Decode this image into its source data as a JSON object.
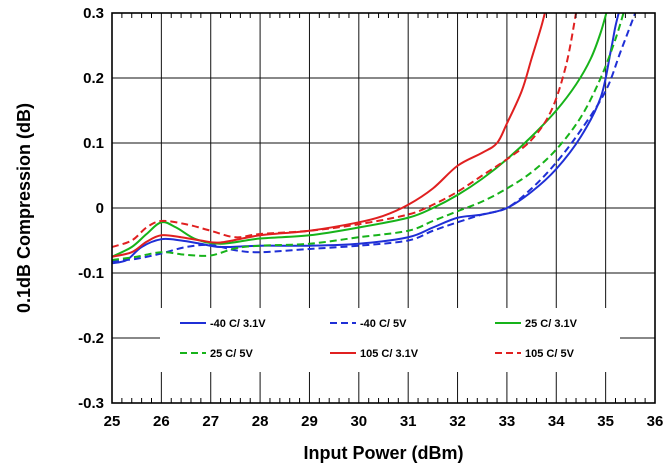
{
  "chart_data": {
    "type": "line",
    "xlabel": "Input Power (dBm)",
    "ylabel": "0.1dB Compression (dB)",
    "xlim": [
      25,
      36
    ],
    "ylim": [
      -0.3,
      0.3
    ],
    "xticks": [
      "25",
      "26",
      "27",
      "28",
      "29",
      "30",
      "31",
      "32",
      "33",
      "34",
      "35",
      "36"
    ],
    "yticks": [
      "-0.3",
      "-0.2",
      "-0.1",
      "0",
      "0.1",
      "0.2",
      "0.3"
    ],
    "grid": true,
    "legend_position": "bottom-inside",
    "series": [
      {
        "name": "-40 C/ 3.1V",
        "color": "#1f2fd6",
        "dash": "solid",
        "x": [
          25,
          25.3,
          25.6,
          26,
          26.4,
          26.8,
          27.2,
          28,
          29,
          30,
          31,
          31.5,
          32,
          32.5,
          33,
          33.5,
          34,
          34.5,
          34.9,
          35.1,
          35.2,
          35.3
        ],
        "y": [
          -0.085,
          -0.08,
          -0.06,
          -0.048,
          -0.05,
          -0.055,
          -0.06,
          -0.058,
          -0.058,
          -0.055,
          -0.045,
          -0.03,
          -0.015,
          -0.01,
          0.0,
          0.025,
          0.06,
          0.11,
          0.17,
          0.24,
          0.28,
          0.31
        ]
      },
      {
        "name": "-40 C/ 5V",
        "color": "#1f2fd6",
        "dash": "dashed",
        "x": [
          25,
          25.5,
          26,
          26.5,
          27,
          27.5,
          28,
          29,
          30,
          31,
          31.5,
          32,
          32.5,
          33,
          33.5,
          34,
          34.5,
          35,
          35.3,
          35.6
        ],
        "y": [
          -0.082,
          -0.078,
          -0.07,
          -0.06,
          -0.057,
          -0.065,
          -0.068,
          -0.063,
          -0.058,
          -0.05,
          -0.035,
          -0.022,
          -0.01,
          0.0,
          0.03,
          0.07,
          0.12,
          0.18,
          0.24,
          0.3
        ]
      },
      {
        "name": "25 C/ 3.1V",
        "color": "#17b31a",
        "dash": "solid",
        "x": [
          25,
          25.4,
          25.7,
          26,
          26.3,
          26.7,
          27.2,
          28,
          29,
          30,
          31,
          31.5,
          32,
          32.5,
          33,
          33.5,
          34,
          34.4,
          34.7,
          34.9,
          35.05
        ],
        "y": [
          -0.075,
          -0.06,
          -0.04,
          -0.022,
          -0.03,
          -0.048,
          -0.055,
          -0.047,
          -0.042,
          -0.03,
          -0.015,
          0.0,
          0.02,
          0.045,
          0.075,
          0.11,
          0.15,
          0.19,
          0.23,
          0.27,
          0.31
        ]
      },
      {
        "name": "25 C/ 5V",
        "color": "#17b31a",
        "dash": "dashed",
        "x": [
          25,
          25.5,
          26,
          26.5,
          27,
          27.5,
          28,
          29,
          30,
          31,
          31.5,
          32,
          32.5,
          33,
          33.5,
          34,
          34.5,
          34.9,
          35.2,
          35.4
        ],
        "y": [
          -0.08,
          -0.075,
          -0.068,
          -0.072,
          -0.073,
          -0.062,
          -0.058,
          -0.055,
          -0.045,
          -0.035,
          -0.02,
          -0.005,
          0.01,
          0.03,
          0.055,
          0.09,
          0.14,
          0.2,
          0.26,
          0.31
        ]
      },
      {
        "name": "105 C/ 3.1V",
        "color": "#e02020",
        "dash": "solid",
        "x": [
          25,
          25.4,
          25.7,
          26,
          26.4,
          26.8,
          27.2,
          28,
          29,
          30,
          30.5,
          31,
          31.5,
          32,
          32.5,
          32.8,
          33,
          33.3,
          33.5,
          33.7,
          33.8
        ],
        "y": [
          -0.075,
          -0.068,
          -0.052,
          -0.042,
          -0.045,
          -0.05,
          -0.053,
          -0.042,
          -0.035,
          -0.022,
          -0.012,
          0.005,
          0.03,
          0.065,
          0.085,
          0.1,
          0.13,
          0.18,
          0.23,
          0.28,
          0.31
        ]
      },
      {
        "name": "105 C/ 5V",
        "color": "#e02020",
        "dash": "dashed",
        "x": [
          25,
          25.4,
          25.7,
          26,
          26.5,
          27,
          27.5,
          28,
          29,
          30,
          31,
          31.5,
          32,
          32.5,
          33,
          33.5,
          33.9,
          34.2,
          34.4
        ],
        "y": [
          -0.06,
          -0.05,
          -0.03,
          -0.02,
          -0.025,
          -0.035,
          -0.045,
          -0.04,
          -0.035,
          -0.025,
          -0.01,
          0.005,
          0.025,
          0.05,
          0.075,
          0.105,
          0.15,
          0.22,
          0.3
        ]
      }
    ]
  }
}
